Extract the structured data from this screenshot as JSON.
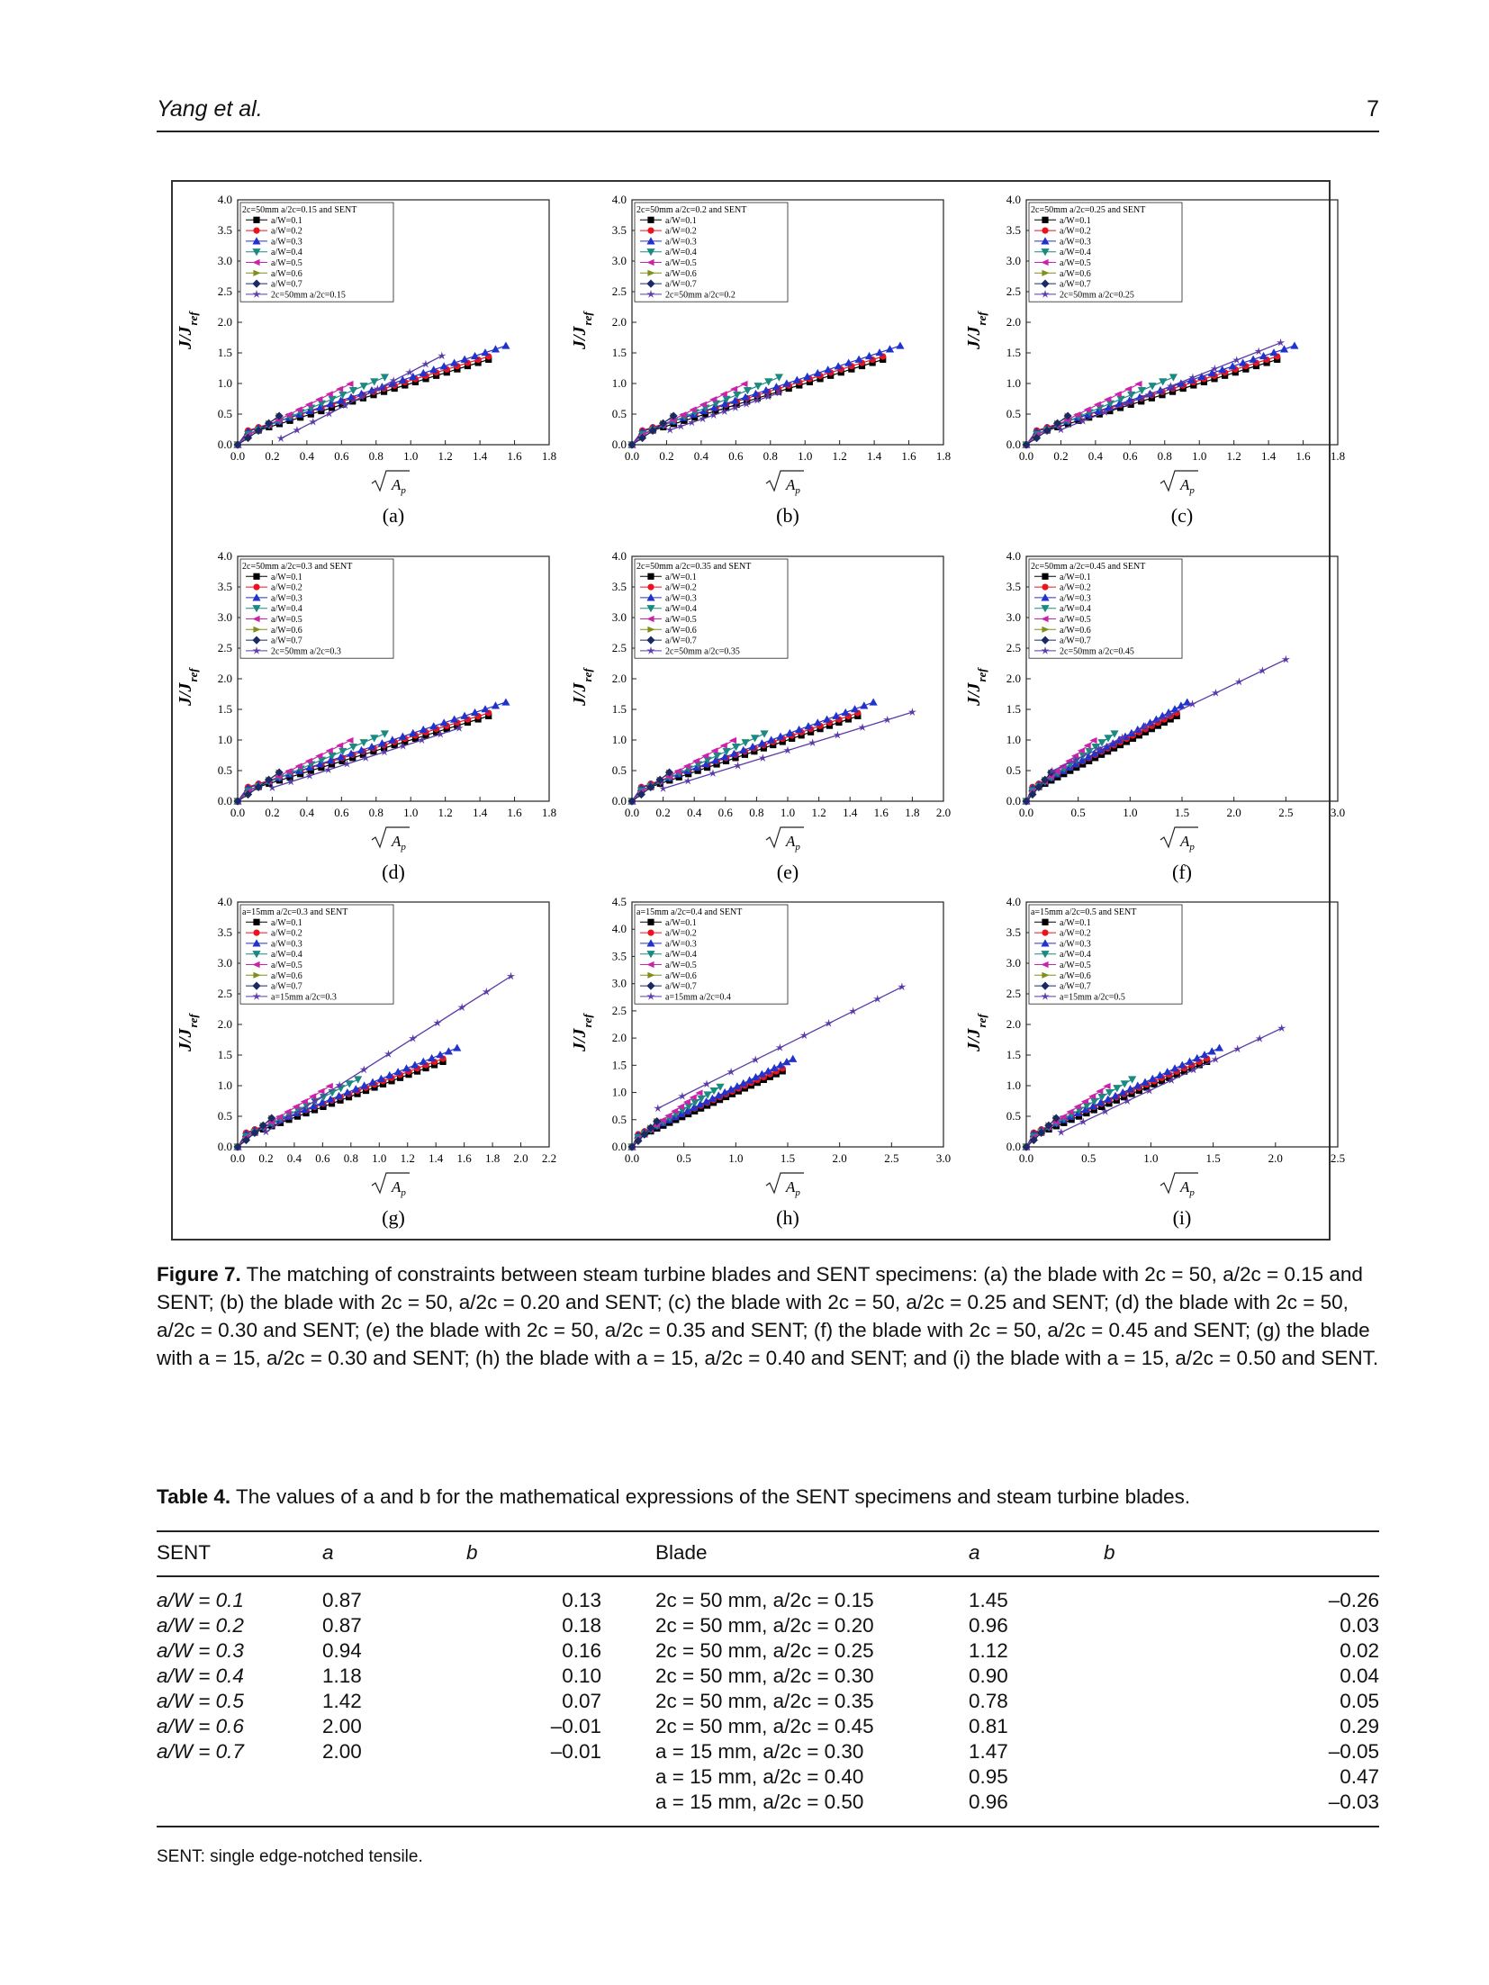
{
  "header": {
    "author": "Yang et al.",
    "page": "7"
  },
  "figure": {
    "panel_labels": [
      "(a)",
      "(b)",
      "(c)",
      "(d)",
      "(e)",
      "(f)",
      "(g)",
      "(h)",
      "(i)"
    ],
    "ylabel": "J/J",
    "ylabel_sub": "ref",
    "xlabel": "A",
    "xlabel_sub": "p",
    "legend_entries": [
      "a/W=0.1",
      "a/W=0.2",
      "a/W=0.3",
      "a/W=0.4",
      "a/W=0.5",
      "a/W=0.6",
      "a/W=0.7"
    ],
    "series_colors": [
      "#000000",
      "#e8141e",
      "#2233cc",
      "#1a8a80",
      "#cc22aa",
      "#7f8f1a",
      "#1a2a66",
      "#5a3aa8"
    ]
  },
  "chart_data": [
    {
      "type": "line",
      "panel": "(a)",
      "legend_title": "2c=50mm a/2c=0.15 and SENT",
      "blade_name": "2c=50mm a/2c=0.15",
      "xlim": [
        0,
        1.8
      ],
      "ylim": [
        0,
        4.0
      ],
      "xticks": [
        "0.0",
        "0.2",
        "0.4",
        "0.6",
        "0.8",
        "1.0",
        "1.2",
        "1.4",
        "1.6",
        "1.8"
      ],
      "yticks": [
        "0.0",
        "0.5",
        "1.0",
        "1.5",
        "2.0",
        "2.5",
        "3.0",
        "3.5",
        "4.0"
      ],
      "blade": {
        "a": 1.45,
        "b": -0.26,
        "x_range": [
          0.25,
          1.18
        ]
      }
    },
    {
      "type": "line",
      "panel": "(b)",
      "legend_title": "2c=50mm a/2c=0.2 and SENT",
      "blade_name": "2c=50mm a/2c=0.2",
      "xlim": [
        0,
        1.8
      ],
      "ylim": [
        0,
        4.0
      ],
      "xticks": [
        "0.0",
        "0.2",
        "0.4",
        "0.6",
        "0.8",
        "1.0",
        "1.2",
        "1.4",
        "1.6",
        "1.8"
      ],
      "yticks": [
        "0.0",
        "0.5",
        "1.0",
        "1.5",
        "2.0",
        "2.5",
        "3.0",
        "3.5",
        "4.0"
      ],
      "blade": {
        "a": 0.96,
        "b": 0.03,
        "x_range": [
          0.22,
          0.85
        ]
      }
    },
    {
      "type": "line",
      "panel": "(c)",
      "legend_title": "2c=50mm a/2c=0.25 and SENT",
      "blade_name": "2c=50mm a/2c=0.25",
      "xlim": [
        0,
        1.8
      ],
      "ylim": [
        0,
        4.0
      ],
      "xticks": [
        "0.0",
        "0.2",
        "0.4",
        "0.6",
        "0.8",
        "1.0",
        "1.2",
        "1.4",
        "1.6",
        "1.8"
      ],
      "yticks": [
        "0.0",
        "0.5",
        "1.0",
        "1.5",
        "2.0",
        "2.5",
        "3.0",
        "3.5",
        "4.0"
      ],
      "blade": {
        "a": 1.12,
        "b": 0.02,
        "x_range": [
          0.2,
          1.47
        ]
      }
    },
    {
      "type": "line",
      "panel": "(d)",
      "legend_title": "2c=50mm a/2c=0.3 and SENT",
      "blade_name": "2c=50mm a/2c=0.3",
      "xlim": [
        0,
        1.8
      ],
      "ylim": [
        0,
        4.0
      ],
      "xticks": [
        "0.0",
        "0.2",
        "0.4",
        "0.6",
        "0.8",
        "1.0",
        "1.2",
        "1.4",
        "1.6",
        "1.8"
      ],
      "yticks": [
        "0.0",
        "0.5",
        "1.0",
        "1.5",
        "2.0",
        "2.5",
        "3.0",
        "3.5",
        "4.0"
      ],
      "blade": {
        "a": 0.9,
        "b": 0.04,
        "x_range": [
          0.2,
          1.28
        ]
      }
    },
    {
      "type": "line",
      "panel": "(e)",
      "legend_title": "2c=50mm a/2c=0.35 and SENT",
      "blade_name": "2c=50mm a/2c=0.35",
      "xlim": [
        0,
        2.0
      ],
      "ylim": [
        0,
        4.0
      ],
      "xticks": [
        "0.0",
        "0.2",
        "0.4",
        "0.6",
        "0.8",
        "1.0",
        "1.2",
        "1.4",
        "1.6",
        "1.8",
        "2.0"
      ],
      "yticks": [
        "0.0",
        "0.5",
        "1.0",
        "1.5",
        "2.0",
        "2.5",
        "3.0",
        "3.5",
        "4.0"
      ],
      "blade": {
        "a": 0.78,
        "b": 0.05,
        "x_range": [
          0.2,
          1.8
        ]
      }
    },
    {
      "type": "line",
      "panel": "(f)",
      "legend_title": "2c=50mm a/2c=0.45 and SENT",
      "blade_name": "2c=50mm a/2c=0.45",
      "xlim": [
        0,
        3.0
      ],
      "ylim": [
        0,
        4.0
      ],
      "xticks": [
        "0.0",
        "0.5",
        "1.0",
        "1.5",
        "2.0",
        "2.5",
        "3.0"
      ],
      "yticks": [
        "0.0",
        "0.5",
        "1.0",
        "1.5",
        "2.0",
        "2.5",
        "3.0",
        "3.5",
        "4.0"
      ],
      "blade": {
        "a": 0.81,
        "b": 0.29,
        "x_range": [
          0.25,
          2.5
        ]
      }
    },
    {
      "type": "line",
      "panel": "(g)",
      "legend_title": "a=15mm a/2c=0.3 and SENT",
      "blade_name": "a=15mm a/2c=0.3",
      "xlim": [
        0,
        2.2
      ],
      "ylim": [
        0,
        4.0
      ],
      "xticks": [
        "0.0",
        "0.2",
        "0.4",
        "0.6",
        "0.8",
        "1.0",
        "1.2",
        "1.4",
        "1.6",
        "1.8",
        "2.0",
        "2.2"
      ],
      "yticks": [
        "0.0",
        "0.5",
        "1.0",
        "1.5",
        "2.0",
        "2.5",
        "3.0",
        "3.5",
        "4.0"
      ],
      "blade": {
        "a": 1.47,
        "b": -0.05,
        "x_range": [
          0.2,
          1.93
        ]
      }
    },
    {
      "type": "line",
      "panel": "(h)",
      "legend_title": "a=15mm a/2c=0.4 and SENT",
      "blade_name": "a=15mm a/2c=0.4",
      "xlim": [
        0,
        3.0
      ],
      "ylim": [
        0,
        4.5
      ],
      "xticks": [
        "0.0",
        "0.5",
        "1.0",
        "1.5",
        "2.0",
        "2.5",
        "3.0"
      ],
      "yticks": [
        "0.0",
        "0.5",
        "1.0",
        "1.5",
        "2.0",
        "2.5",
        "3.0",
        "3.5",
        "4.0",
        "4.5"
      ],
      "blade": {
        "a": 0.95,
        "b": 0.47,
        "x_range": [
          0.25,
          2.6
        ]
      }
    },
    {
      "type": "line",
      "panel": "(i)",
      "legend_title": "a=15mm a/2c=0.5 and SENT",
      "blade_name": "a=15mm a/2c=0.5",
      "xlim": [
        0,
        2.5
      ],
      "ylim": [
        0,
        4.0
      ],
      "xticks": [
        "0.0",
        "0.5",
        "1.0",
        "1.5",
        "2.0",
        "2.5"
      ],
      "yticks": [
        "0.0",
        "0.5",
        "1.0",
        "1.5",
        "2.0",
        "2.5",
        "3.0",
        "3.5",
        "4.0"
      ],
      "blade": {
        "a": 0.96,
        "b": -0.03,
        "x_range": [
          0.28,
          2.05
        ]
      }
    }
  ],
  "sent_fits": [
    {
      "a": 0.87,
      "b": 0.13,
      "xmax": 1.45
    },
    {
      "a": 0.87,
      "b": 0.18,
      "xmax": 1.45
    },
    {
      "a": 0.94,
      "b": 0.16,
      "xmax": 1.55
    },
    {
      "a": 1.18,
      "b": 0.1,
      "xmax": 0.85
    },
    {
      "a": 1.42,
      "b": 0.07,
      "xmax": 0.65
    },
    {
      "a": 2.0,
      "b": -0.01,
      "xmax": 0.24
    },
    {
      "a": 2.0,
      "b": -0.01,
      "xmax": 0.24
    }
  ],
  "caption": {
    "label": "Figure 7.",
    "text": "The matching of constraints between steam turbine blades and SENT specimens: (a) the blade with 2c = 50, a/2c = 0.15 and SENT; (b) the blade with 2c = 50, a/2c = 0.20 and SENT; (c) the blade with 2c = 50, a/2c = 0.25 and SENT; (d) the blade with 2c = 50, a/2c = 0.30 and SENT; (e) the blade with 2c = 50, a/2c = 0.35 and SENT; (f) the blade with 2c = 50, a/2c = 0.45 and SENT; (g) the blade with a = 15, a/2c = 0.30 and SENT; (h) the blade with a = 15, a/2c = 0.40 and SENT; and (i) the blade with a = 15, a/2c = 0.50 and SENT."
  },
  "table": {
    "label": "Table 4.",
    "title": "The values of a and b for the mathematical expressions of the SENT specimens and steam turbine blades.",
    "headers": [
      "SENT",
      "a",
      "b",
      "Blade",
      "a",
      "b"
    ],
    "rows": [
      [
        "a/W = 0.1",
        "0.87",
        "0.13",
        "2c = 50 mm, a/2c = 0.15",
        "1.45",
        "–0.26"
      ],
      [
        "a/W = 0.2",
        "0.87",
        "0.18",
        "2c = 50 mm, a/2c = 0.20",
        "0.96",
        "0.03"
      ],
      [
        "a/W = 0.3",
        "0.94",
        "0.16",
        "2c = 50 mm, a/2c = 0.25",
        "1.12",
        "0.02"
      ],
      [
        "a/W = 0.4",
        "1.18",
        "0.10",
        "2c = 50 mm, a/2c = 0.30",
        "0.90",
        "0.04"
      ],
      [
        "a/W = 0.5",
        "1.42",
        "0.07",
        "2c = 50 mm, a/2c = 0.35",
        "0.78",
        "0.05"
      ],
      [
        "a/W = 0.6",
        "2.00",
        "–0.01",
        "2c = 50 mm, a/2c = 0.45",
        "0.81",
        "0.29"
      ],
      [
        "a/W = 0.7",
        "2.00",
        "–0.01",
        "a = 15 mm, a/2c = 0.30",
        "1.47",
        "–0.05"
      ],
      [
        "",
        "",
        "",
        "a = 15 mm, a/2c = 0.40",
        "0.95",
        "0.47"
      ],
      [
        "",
        "",
        "",
        "a = 15 mm, a/2c = 0.50",
        "0.96",
        "–0.03"
      ]
    ],
    "note": "SENT: single edge-notched tensile."
  }
}
